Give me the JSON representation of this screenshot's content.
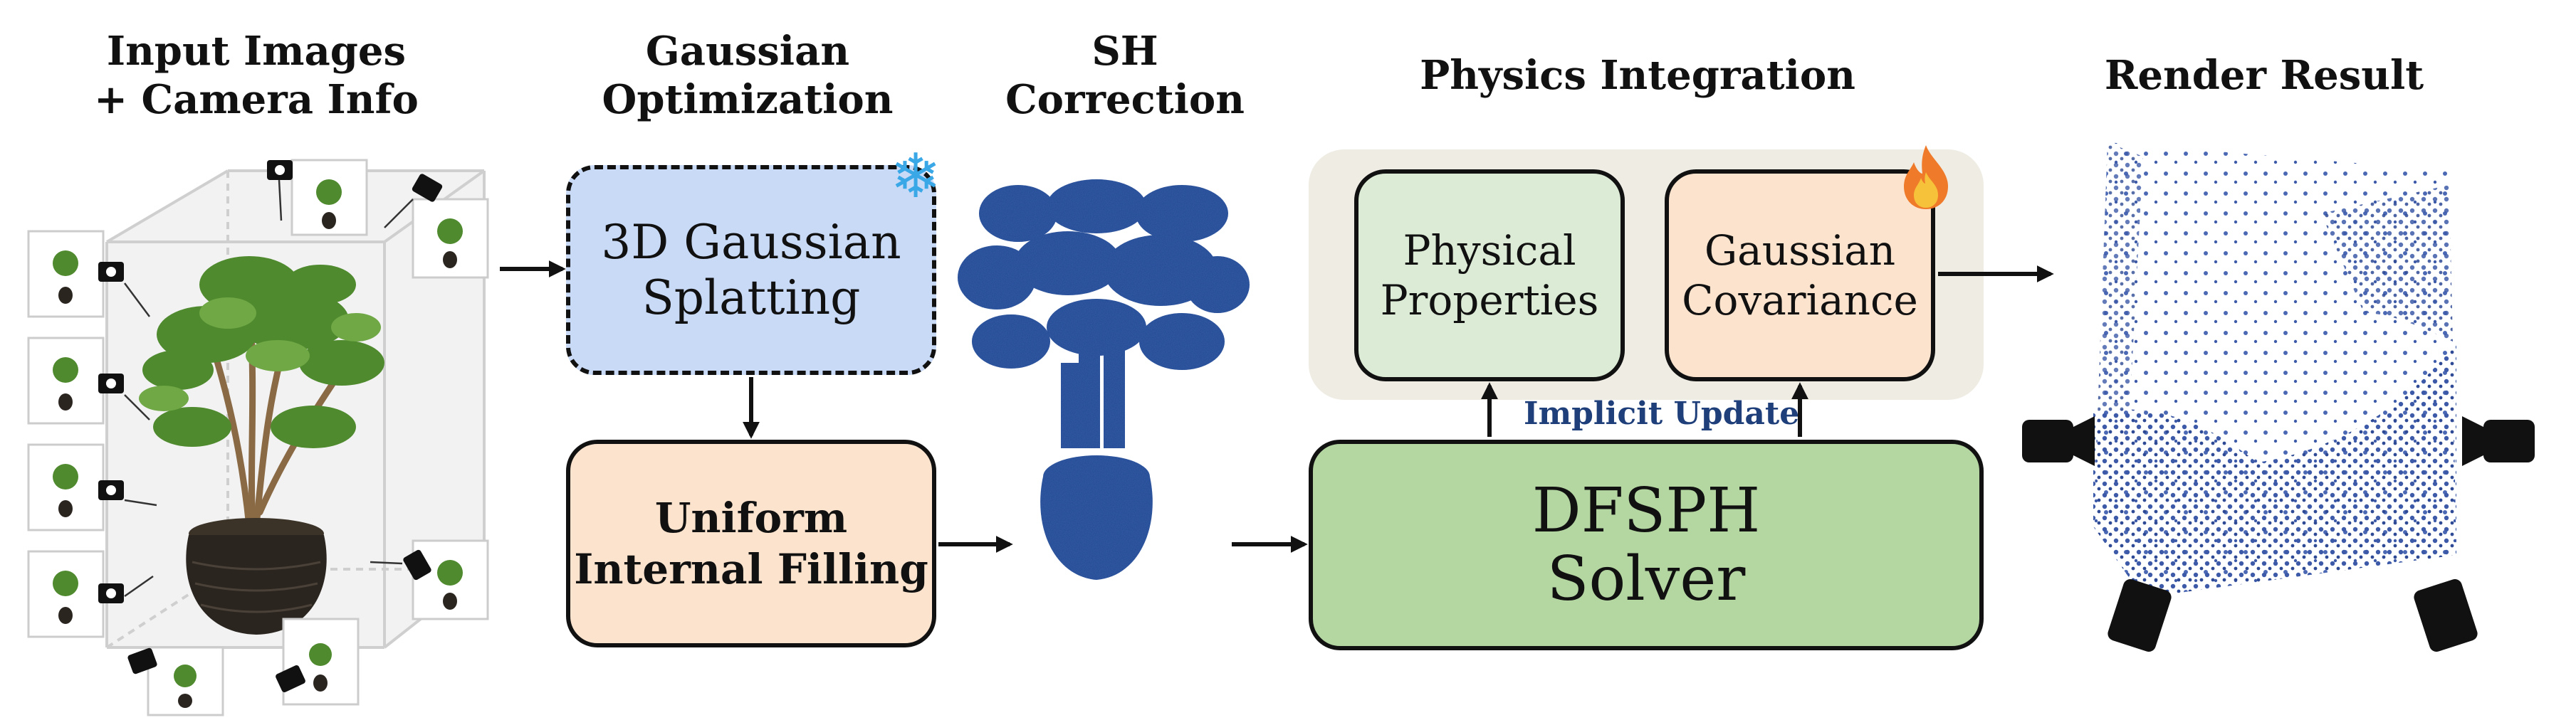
{
  "stages": {
    "input": {
      "title": "Input Images\n+ Camera Info"
    },
    "gaussian_opt": {
      "title": "Gaussian\nOptimization"
    },
    "sh": {
      "title": "SH\nCorrection"
    },
    "physics": {
      "title": "Physics Integration"
    },
    "render": {
      "title": "Render Result"
    }
  },
  "boxes": {
    "splatting": {
      "label": "3D Gaussian\nSplatting",
      "status_icon": "snowflake-icon",
      "fill": "#c9daf7"
    },
    "filling": {
      "label": "Uniform\nInternal Filling",
      "fill": "#fbe3cd"
    },
    "physical": {
      "label": "Physical\nProperties",
      "fill": "#dcebd5"
    },
    "covariance": {
      "label": "Gaussian\nCovariance",
      "status_icon": "fire-icon",
      "fill": "#fbe3cd"
    },
    "solver": {
      "label": "DFSPH\nSolver",
      "fill": "#b4d6a1"
    }
  },
  "implicit_update": "Implicit Update",
  "colors": {
    "physics_panel": "#eeece3",
    "gaussian_blue": "#3c5aa8",
    "implicit_text": "#1f3f7a"
  }
}
